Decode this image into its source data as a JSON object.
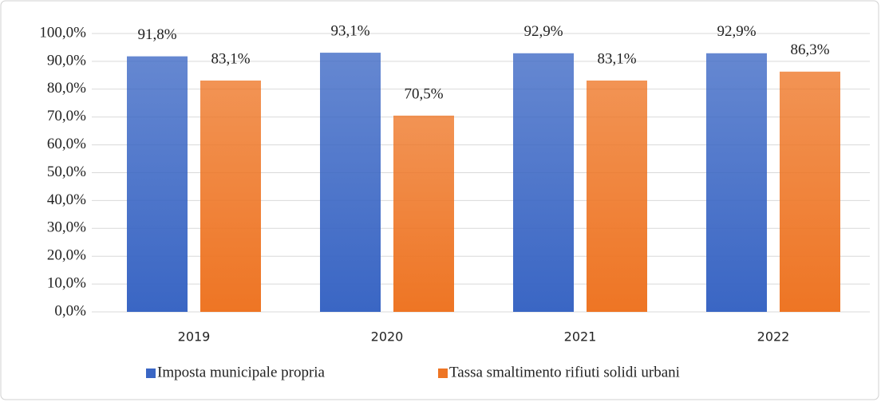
{
  "chart_data": {
    "type": "bar",
    "categories": [
      "2019",
      "2020",
      "2021",
      "2022"
    ],
    "series": [
      {
        "name": "Imposta municipale propria",
        "color": "#3a66c4",
        "values": [
          91.8,
          93.1,
          92.9,
          92.9
        ],
        "value_labels": [
          "91,8%",
          "93,1%",
          "92,9%",
          "92,9%"
        ]
      },
      {
        "name": "Tassa smaltimento rifiuti solidi urbani",
        "color": "#ee7524",
        "values": [
          83.1,
          70.5,
          83.1,
          86.3
        ],
        "value_labels": [
          "83,1%",
          "70,5%",
          "83,1%",
          "86,3%"
        ]
      }
    ],
    "ylim": [
      0,
      100
    ],
    "yticks": [
      {
        "value": 0,
        "label": "0,0%"
      },
      {
        "value": 10,
        "label": "10,0%"
      },
      {
        "value": 20,
        "label": "20,0%"
      },
      {
        "value": 30,
        "label": "30,0%"
      },
      {
        "value": 40,
        "label": "40,0%"
      },
      {
        "value": 50,
        "label": "50,0%"
      },
      {
        "value": 60,
        "label": "60,0%"
      },
      {
        "value": 70,
        "label": "70,0%"
      },
      {
        "value": 80,
        "label": "80,0%"
      },
      {
        "value": 90,
        "label": "90,0%"
      },
      {
        "value": 100,
        "label": "100,0%"
      }
    ],
    "grid": true,
    "legend": "bottom"
  }
}
